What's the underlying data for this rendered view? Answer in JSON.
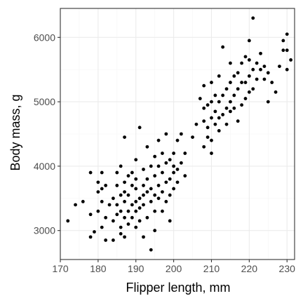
{
  "chart_data": {
    "type": "scatter",
    "title": "",
    "xlabel": "Flipper length, mm",
    "ylabel": "Body mass, g",
    "xlim": [
      170,
      232
    ],
    "ylim": [
      2550,
      6450
    ],
    "xticks": [
      170,
      180,
      190,
      200,
      210,
      220,
      230
    ],
    "yticks": [
      3000,
      4000,
      5000,
      6000
    ],
    "grid": true,
    "legend": "none",
    "point_color": "#000000",
    "panel_border_color": "#333333",
    "grid_major_color": "#ebebeb",
    "grid_minor_color": "#f5f5f5",
    "series": [
      {
        "points": [
          [
            172,
            3150
          ],
          [
            174,
            3400
          ],
          [
            176,
            3450
          ],
          [
            178,
            3250
          ],
          [
            178,
            2900
          ],
          [
            178,
            3900
          ],
          [
            179,
            2980
          ],
          [
            180,
            3600
          ],
          [
            180,
            3750
          ],
          [
            180,
            3300
          ],
          [
            181,
            3050
          ],
          [
            181,
            3450
          ],
          [
            181,
            3650
          ],
          [
            181,
            3900
          ],
          [
            182,
            3200
          ],
          [
            182,
            2850
          ],
          [
            182,
            3700
          ],
          [
            183,
            3400
          ],
          [
            184,
            3500
          ],
          [
            184,
            3150
          ],
          [
            184,
            2850
          ],
          [
            185,
            3400
          ],
          [
            185,
            3700
          ],
          [
            185,
            3250
          ],
          [
            185,
            3900
          ],
          [
            186,
            3550
          ],
          [
            186,
            3300
          ],
          [
            186,
            3050
          ],
          [
            186,
            2950
          ],
          [
            186,
            4000
          ],
          [
            187,
            3450
          ],
          [
            187,
            3200
          ],
          [
            187,
            3750
          ],
          [
            187,
            3600
          ],
          [
            187,
            2900
          ],
          [
            187,
            4450
          ],
          [
            188,
            3300
          ],
          [
            188,
            3550
          ],
          [
            188,
            3850
          ],
          [
            188,
            3100
          ],
          [
            189,
            3400
          ],
          [
            189,
            3700
          ],
          [
            189,
            3900
          ],
          [
            189,
            3200
          ],
          [
            190,
            3450
          ],
          [
            190,
            3650
          ],
          [
            190,
            3050
          ],
          [
            190,
            4100
          ],
          [
            190,
            3300
          ],
          [
            190,
            3800
          ],
          [
            191,
            3500
          ],
          [
            191,
            3350
          ],
          [
            191,
            3150
          ],
          [
            191,
            4600
          ],
          [
            192,
            3700
          ],
          [
            192,
            3550
          ],
          [
            192,
            3950
          ],
          [
            192,
            3400
          ],
          [
            192,
            2900
          ],
          [
            193,
            3600
          ],
          [
            193,
            3200
          ],
          [
            193,
            3800
          ],
          [
            193,
            4300
          ],
          [
            194,
            3450
          ],
          [
            194,
            3650
          ],
          [
            194,
            4000
          ],
          [
            194,
            2700
          ],
          [
            195,
            3550
          ],
          [
            195,
            3300
          ],
          [
            195,
            3850
          ],
          [
            195,
            4150
          ],
          [
            195,
            3000
          ],
          [
            196,
            3700
          ],
          [
            196,
            3500
          ],
          [
            196,
            4000
          ],
          [
            196,
            4400
          ],
          [
            197,
            3600
          ],
          [
            197,
            3900
          ],
          [
            197,
            4200
          ],
          [
            197,
            3300
          ],
          [
            198,
            3750
          ],
          [
            198,
            3450
          ],
          [
            198,
            4050
          ],
          [
            198,
            4500
          ],
          [
            199,
            3800
          ],
          [
            199,
            4100
          ],
          [
            199,
            3550
          ],
          [
            199,
            3150
          ],
          [
            200,
            3900
          ],
          [
            200,
            4200
          ],
          [
            200,
            3650
          ],
          [
            200,
            4000
          ],
          [
            201,
            3950
          ],
          [
            201,
            4400
          ],
          [
            201,
            3750
          ],
          [
            202,
            4050
          ],
          [
            202,
            4500
          ],
          [
            203,
            4200
          ],
          [
            203,
            3850
          ],
          [
            205,
            4450
          ],
          [
            206,
            4650
          ],
          [
            207,
            5050
          ],
          [
            208,
            4300
          ],
          [
            208,
            4700
          ],
          [
            208,
            4900
          ],
          [
            208,
            5250
          ],
          [
            209,
            4450
          ],
          [
            209,
            4600
          ],
          [
            209,
            4950
          ],
          [
            210,
            4750
          ],
          [
            210,
            5000
          ],
          [
            210,
            4400
          ],
          [
            210,
            5300
          ],
          [
            210,
            4200
          ],
          [
            211,
            4650
          ],
          [
            211,
            4850
          ],
          [
            211,
            5100
          ],
          [
            212,
            4750
          ],
          [
            212,
            5000
          ],
          [
            212,
            4550
          ],
          [
            212,
            5400
          ],
          [
            213,
            4800
          ],
          [
            213,
            5100
          ],
          [
            213,
            5850
          ],
          [
            214,
            4900
          ],
          [
            214,
            5200
          ],
          [
            214,
            4650
          ],
          [
            215,
            5000
          ],
          [
            215,
            5300
          ],
          [
            215,
            4850
          ],
          [
            215,
            5600
          ],
          [
            216,
            5100
          ],
          [
            216,
            5400
          ],
          [
            216,
            4900
          ],
          [
            217,
            5200
          ],
          [
            217,
            5450
          ],
          [
            217,
            4700
          ],
          [
            218,
            5300
          ],
          [
            218,
            5600
          ],
          [
            218,
            4950
          ],
          [
            219,
            5300
          ],
          [
            219,
            5050
          ],
          [
            219,
            5700
          ],
          [
            220,
            5400
          ],
          [
            220,
            5650
          ],
          [
            220,
            5150
          ],
          [
            220,
            5950
          ],
          [
            221,
            5500
          ],
          [
            221,
            5200
          ],
          [
            221,
            6300
          ],
          [
            222,
            5600
          ],
          [
            222,
            5350
          ],
          [
            223,
            5500
          ],
          [
            223,
            5750
          ],
          [
            224,
            5350
          ],
          [
            224,
            5550
          ],
          [
            225,
            5450
          ],
          [
            225,
            5000
          ],
          [
            226,
            5300
          ],
          [
            227,
            5150
          ],
          [
            228,
            5550
          ],
          [
            229,
            5800
          ],
          [
            229,
            5950
          ],
          [
            230,
            5800
          ],
          [
            230,
            6050
          ],
          [
            230,
            5500
          ],
          [
            231,
            5650
          ]
        ]
      }
    ]
  }
}
